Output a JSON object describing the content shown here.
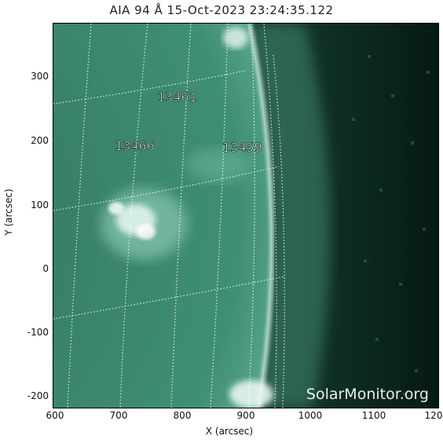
{
  "title": "AIA 94 Å 15-Oct-2023 23:24:35.122",
  "xlabel": "X (arcsec)",
  "ylabel": "Y (arcsec)",
  "x_ticks": [
    "600",
    "700",
    "800",
    "900",
    "1000",
    "1100",
    "120"
  ],
  "y_ticks": [
    "300",
    "200",
    "100",
    "0",
    "-100",
    "-200"
  ],
  "regions": [
    "13461",
    "13466",
    "13459"
  ],
  "watermark": "SolarMonitor.org",
  "colors": {
    "disk": "#3f8f73",
    "limb": "#cfeee2",
    "background": "#0a2a20"
  }
}
